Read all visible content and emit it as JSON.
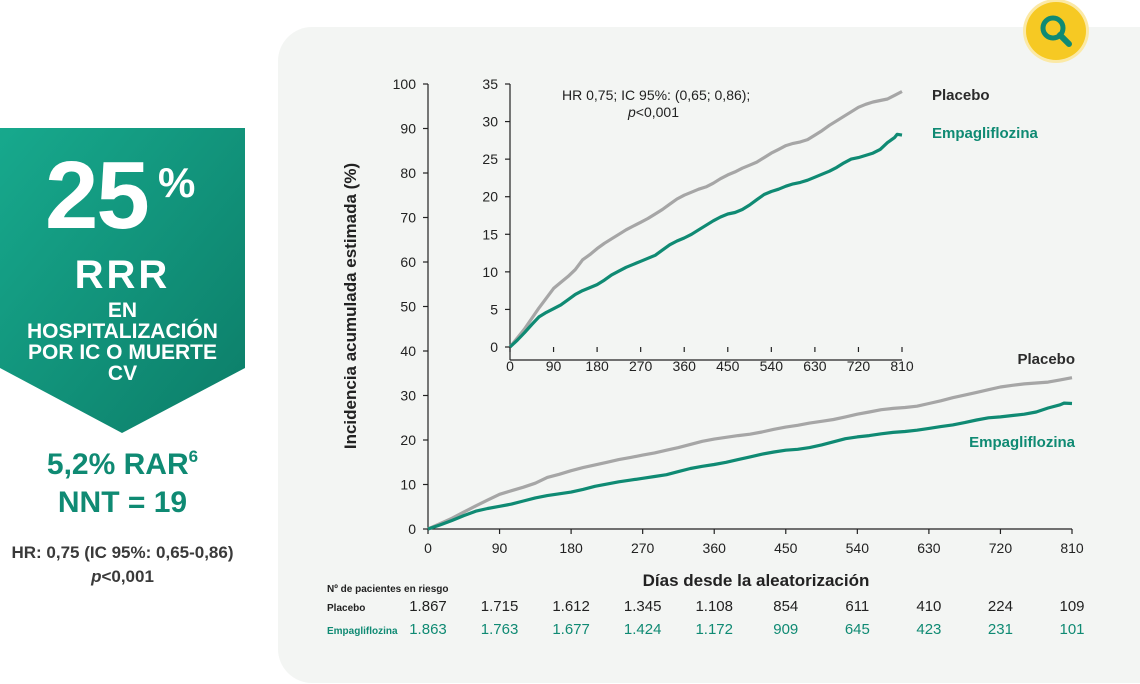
{
  "summary": {
    "percent_value": "25",
    "percent_sign": "%",
    "rrr_label": "RRR",
    "description_lines": [
      "EN",
      "HOSPITALIZACIÓN",
      "POR IC O MUERTE",
      "CV"
    ],
    "rar_text": "5,2% RAR",
    "rar_superscript": "6",
    "nnt_text": "NNT = 19",
    "hr_line1": "HR: 0,75 (IC 95%: 0,65-0,86)",
    "hr_line2_italic": "p",
    "hr_line2_rest": "<0,001",
    "colors": {
      "banner": "#0f8a73",
      "banner_light": "#14a488",
      "stat": "#0f8a73"
    }
  },
  "zoom_button": {
    "icon": "magnifier-icon",
    "color": "#f6c923"
  },
  "chart_data": [
    {
      "type": "line",
      "ylabel": "Incidencia acumulada estimada (%)",
      "xlabel": "Días desde la aleatorización",
      "ylim": [
        0,
        100
      ],
      "xlim": [
        0,
        810
      ],
      "yticks": [
        0,
        10,
        20,
        30,
        40,
        50,
        60,
        70,
        80,
        90,
        100
      ],
      "xticks": [
        0,
        90,
        180,
        270,
        360,
        450,
        540,
        630,
        720,
        810
      ],
      "series": [
        {
          "name": "Placebo",
          "color": "#a6a6a6",
          "points": [
            [
              0,
              0
            ],
            [
              15,
              1.2
            ],
            [
              30,
              2.4
            ],
            [
              45,
              3.8
            ],
            [
              60,
              5.2
            ],
            [
              75,
              6.5
            ],
            [
              90,
              7.8
            ],
            [
              105,
              8.6
            ],
            [
              120,
              9.4
            ],
            [
              135,
              10.3
            ],
            [
              150,
              11.6
            ],
            [
              165,
              12.3
            ],
            [
              180,
              13.1
            ],
            [
              195,
              13.8
            ],
            [
              210,
              14.4
            ],
            [
              225,
              15.0
            ],
            [
              240,
              15.6
            ],
            [
              255,
              16.1
            ],
            [
              270,
              16.6
            ],
            [
              285,
              17.1
            ],
            [
              300,
              17.7
            ],
            [
              315,
              18.3
            ],
            [
              330,
              19.0
            ],
            [
              345,
              19.7
            ],
            [
              360,
              20.2
            ],
            [
              375,
              20.6
            ],
            [
              390,
              21.0
            ],
            [
              405,
              21.3
            ],
            [
              420,
              21.8
            ],
            [
              435,
              22.4
            ],
            [
              450,
              22.9
            ],
            [
              465,
              23.3
            ],
            [
              480,
              23.8
            ],
            [
              495,
              24.2
            ],
            [
              510,
              24.6
            ],
            [
              525,
              25.2
            ],
            [
              540,
              25.8
            ],
            [
              555,
              26.3
            ],
            [
              570,
              26.8
            ],
            [
              585,
              27.1
            ],
            [
              600,
              27.3
            ],
            [
              615,
              27.6
            ],
            [
              630,
              28.2
            ],
            [
              645,
              28.8
            ],
            [
              660,
              29.5
            ],
            [
              675,
              30.1
            ],
            [
              690,
              30.7
            ],
            [
              705,
              31.3
            ],
            [
              720,
              31.9
            ],
            [
              735,
              32.3
            ],
            [
              750,
              32.6
            ],
            [
              765,
              32.8
            ],
            [
              780,
              33.0
            ],
            [
              795,
              33.5
            ],
            [
              810,
              34.0
            ]
          ]
        },
        {
          "name": "Empagliflozina",
          "color": "#0f8a73",
          "points": [
            [
              0,
              0
            ],
            [
              15,
              0.9
            ],
            [
              30,
              1.9
            ],
            [
              45,
              3.0
            ],
            [
              60,
              4.0
            ],
            [
              75,
              4.6
            ],
            [
              90,
              5.1
            ],
            [
              105,
              5.6
            ],
            [
              120,
              6.3
            ],
            [
              135,
              7.0
            ],
            [
              150,
              7.5
            ],
            [
              165,
              7.9
            ],
            [
              180,
              8.3
            ],
            [
              195,
              8.9
            ],
            [
              210,
              9.6
            ],
            [
              225,
              10.1
            ],
            [
              240,
              10.6
            ],
            [
              255,
              11.0
            ],
            [
              270,
              11.4
            ],
            [
              285,
              11.8
            ],
            [
              300,
              12.2
            ],
            [
              315,
              12.9
            ],
            [
              330,
              13.6
            ],
            [
              345,
              14.1
            ],
            [
              360,
              14.5
            ],
            [
              375,
              15.0
            ],
            [
              390,
              15.6
            ],
            [
              405,
              16.2
            ],
            [
              420,
              16.8
            ],
            [
              435,
              17.3
            ],
            [
              450,
              17.7
            ],
            [
              465,
              17.9
            ],
            [
              480,
              18.3
            ],
            [
              495,
              18.9
            ],
            [
              510,
              19.6
            ],
            [
              525,
              20.3
            ],
            [
              540,
              20.7
            ],
            [
              555,
              21.0
            ],
            [
              570,
              21.4
            ],
            [
              585,
              21.7
            ],
            [
              600,
              21.9
            ],
            [
              615,
              22.2
            ],
            [
              630,
              22.6
            ],
            [
              645,
              23.0
            ],
            [
              660,
              23.4
            ],
            [
              675,
              23.9
            ],
            [
              690,
              24.5
            ],
            [
              705,
              25.0
            ],
            [
              720,
              25.2
            ],
            [
              735,
              25.5
            ],
            [
              750,
              25.8
            ],
            [
              765,
              26.3
            ],
            [
              780,
              27.2
            ],
            [
              795,
              27.9
            ],
            [
              800,
              28.3
            ],
            [
              810,
              28.2
            ]
          ]
        }
      ]
    },
    {
      "type": "line",
      "inset": true,
      "ylim": [
        0,
        35
      ],
      "xlim": [
        0,
        810
      ],
      "yticks": [
        0,
        5,
        10,
        15,
        20,
        25,
        30,
        35
      ],
      "xticks": [
        0,
        90,
        180,
        270,
        360,
        450,
        540,
        630,
        720,
        810
      ],
      "annotation": {
        "line1": "HR 0,75; IC 95%: (0,65; 0,86);",
        "line2_italic": "p",
        "line2_rest": "<0,001"
      },
      "series": [
        {
          "name": "Placebo",
          "color": "#a6a6a6",
          "points": [
            [
              0,
              0
            ],
            [
              15,
              1.2
            ],
            [
              30,
              2.4
            ],
            [
              45,
              3.8
            ],
            [
              60,
              5.2
            ],
            [
              75,
              6.5
            ],
            [
              90,
              7.8
            ],
            [
              105,
              8.6
            ],
            [
              120,
              9.4
            ],
            [
              135,
              10.3
            ],
            [
              150,
              11.6
            ],
            [
              165,
              12.3
            ],
            [
              180,
              13.1
            ],
            [
              195,
              13.8
            ],
            [
              210,
              14.4
            ],
            [
              225,
              15.0
            ],
            [
              240,
              15.6
            ],
            [
              255,
              16.1
            ],
            [
              270,
              16.6
            ],
            [
              285,
              17.1
            ],
            [
              300,
              17.7
            ],
            [
              315,
              18.3
            ],
            [
              330,
              19.0
            ],
            [
              345,
              19.7
            ],
            [
              360,
              20.2
            ],
            [
              375,
              20.6
            ],
            [
              390,
              21.0
            ],
            [
              405,
              21.3
            ],
            [
              420,
              21.8
            ],
            [
              435,
              22.4
            ],
            [
              450,
              22.9
            ],
            [
              465,
              23.3
            ],
            [
              480,
              23.8
            ],
            [
              495,
              24.2
            ],
            [
              510,
              24.6
            ],
            [
              525,
              25.2
            ],
            [
              540,
              25.8
            ],
            [
              555,
              26.3
            ],
            [
              570,
              26.8
            ],
            [
              585,
              27.1
            ],
            [
              600,
              27.3
            ],
            [
              615,
              27.6
            ],
            [
              630,
              28.2
            ],
            [
              645,
              28.8
            ],
            [
              660,
              29.5
            ],
            [
              675,
              30.1
            ],
            [
              690,
              30.7
            ],
            [
              705,
              31.3
            ],
            [
              720,
              31.9
            ],
            [
              735,
              32.3
            ],
            [
              750,
              32.6
            ],
            [
              765,
              32.8
            ],
            [
              780,
              33.0
            ],
            [
              795,
              33.5
            ],
            [
              810,
              34.0
            ]
          ]
        },
        {
          "name": "Empagliflozina",
          "color": "#0f8a73",
          "points": [
            [
              0,
              0
            ],
            [
              15,
              0.9
            ],
            [
              30,
              1.9
            ],
            [
              45,
              3.0
            ],
            [
              60,
              4.0
            ],
            [
              75,
              4.6
            ],
            [
              90,
              5.1
            ],
            [
              105,
              5.6
            ],
            [
              120,
              6.3
            ],
            [
              135,
              7.0
            ],
            [
              150,
              7.5
            ],
            [
              165,
              7.9
            ],
            [
              180,
              8.3
            ],
            [
              195,
              8.9
            ],
            [
              210,
              9.6
            ],
            [
              225,
              10.1
            ],
            [
              240,
              10.6
            ],
            [
              255,
              11.0
            ],
            [
              270,
              11.4
            ],
            [
              285,
              11.8
            ],
            [
              300,
              12.2
            ],
            [
              315,
              12.9
            ],
            [
              330,
              13.6
            ],
            [
              345,
              14.1
            ],
            [
              360,
              14.5
            ],
            [
              375,
              15.0
            ],
            [
              390,
              15.6
            ],
            [
              405,
              16.2
            ],
            [
              420,
              16.8
            ],
            [
              435,
              17.3
            ],
            [
              450,
              17.7
            ],
            [
              465,
              17.9
            ],
            [
              480,
              18.3
            ],
            [
              495,
              18.9
            ],
            [
              510,
              19.6
            ],
            [
              525,
              20.3
            ],
            [
              540,
              20.7
            ],
            [
              555,
              21.0
            ],
            [
              570,
              21.4
            ],
            [
              585,
              21.7
            ],
            [
              600,
              21.9
            ],
            [
              615,
              22.2
            ],
            [
              630,
              22.6
            ],
            [
              645,
              23.0
            ],
            [
              660,
              23.4
            ],
            [
              675,
              23.9
            ],
            [
              690,
              24.5
            ],
            [
              705,
              25.0
            ],
            [
              720,
              25.2
            ],
            [
              735,
              25.5
            ],
            [
              750,
              25.8
            ],
            [
              765,
              26.3
            ],
            [
              780,
              27.2
            ],
            [
              795,
              27.9
            ],
            [
              800,
              28.3
            ],
            [
              810,
              28.2
            ]
          ]
        }
      ]
    }
  ],
  "risk_table": {
    "heading": "Nº de pacientes en riesgo",
    "rows": [
      {
        "name": "Placebo",
        "color": "#222222",
        "values": [
          "1.867",
          "1.715",
          "1.612",
          "1.345",
          "1.108",
          "854",
          "611",
          "410",
          "224",
          "109"
        ]
      },
      {
        "name": "Empagliflozina",
        "color": "#0f8a73",
        "values": [
          "1.863",
          "1.763",
          "1.677",
          "1.424",
          "1.172",
          "909",
          "645",
          "423",
          "231",
          "101"
        ]
      }
    ]
  }
}
